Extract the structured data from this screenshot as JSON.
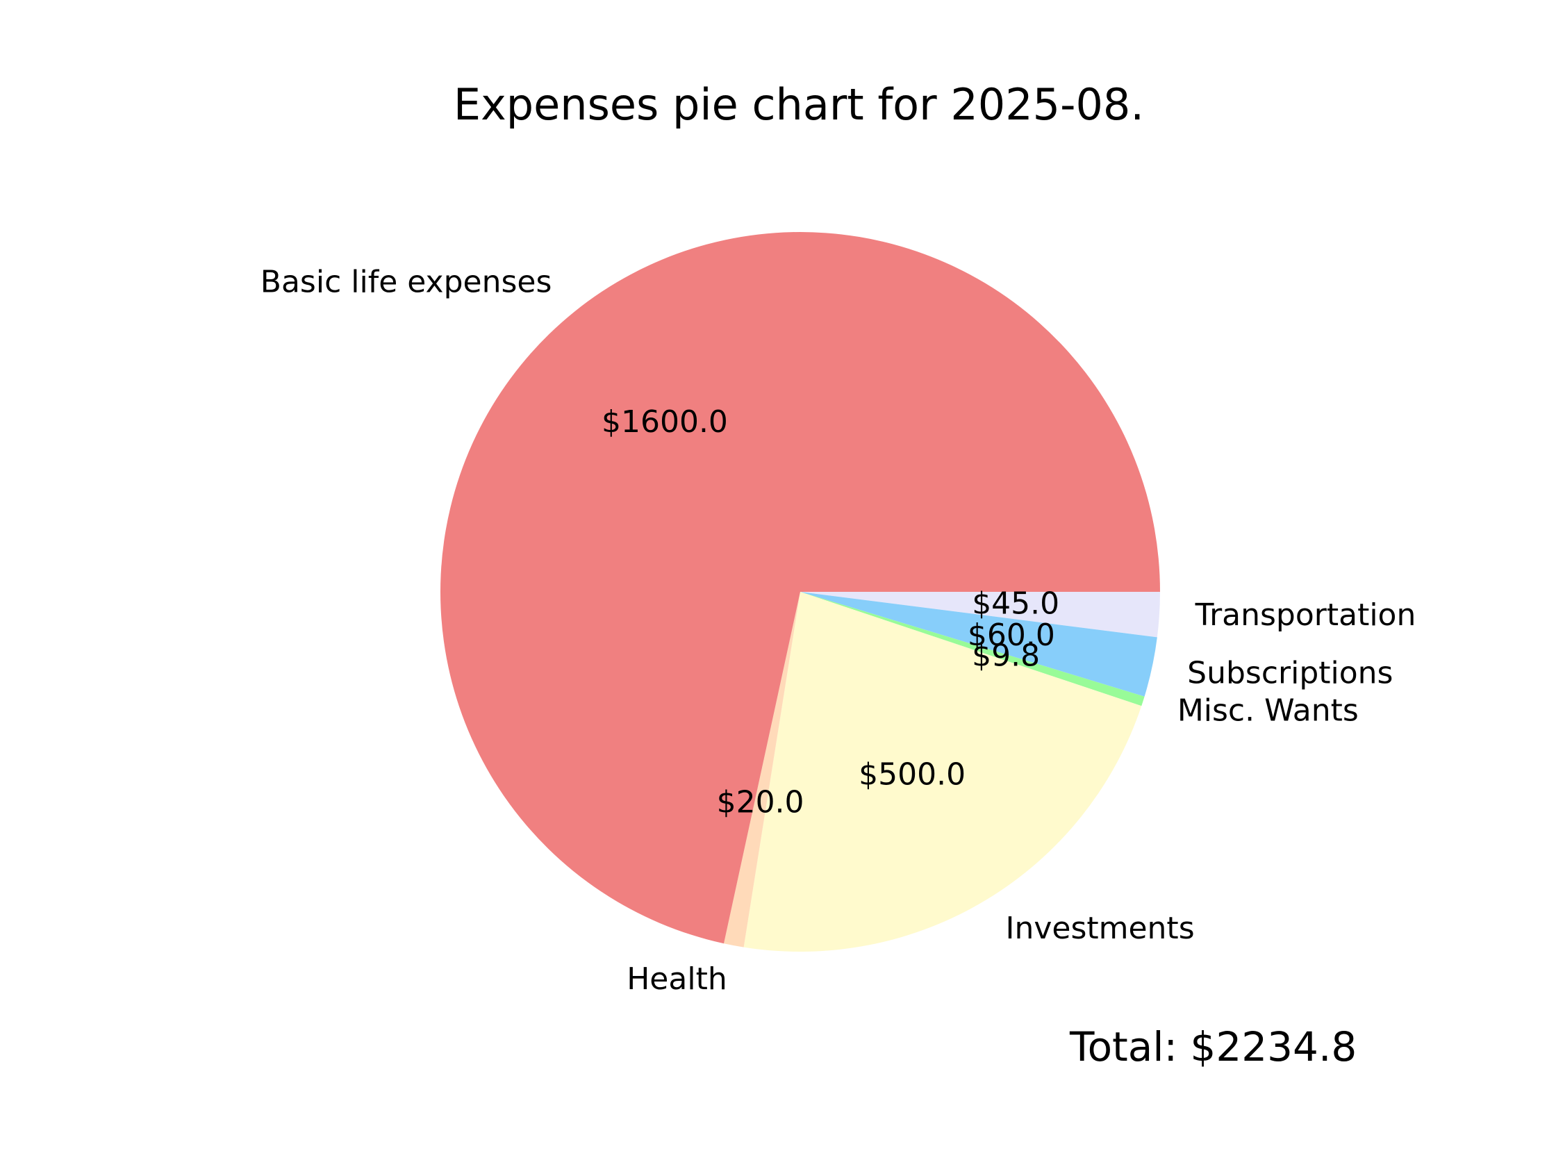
{
  "chart_data": {
    "type": "pie",
    "title": "Expenses pie chart for 2025-08.",
    "start_angle_deg": 0,
    "direction": "clockwise",
    "slices": [
      {
        "label": "Transportation",
        "value": 45.0,
        "value_label": "$45.0",
        "color": "#e6e6fa"
      },
      {
        "label": "Subscriptions",
        "value": 60.0,
        "value_label": "$60.0",
        "color": "#87cefa"
      },
      {
        "label": "Misc. Wants",
        "value": 9.8,
        "value_label": "$9.8",
        "color": "#98fb98"
      },
      {
        "label": "Investments",
        "value": 500.0,
        "value_label": "$500.0",
        "color": "#fffacd"
      },
      {
        "label": "Health",
        "value": 20.0,
        "value_label": "$20.0",
        "color": "#ffdab9"
      },
      {
        "label": "Basic life expenses",
        "value": 1600.0,
        "value_label": "$1600.0",
        "color": "#f08080"
      }
    ],
    "total_label": "Total: $2234.8"
  }
}
